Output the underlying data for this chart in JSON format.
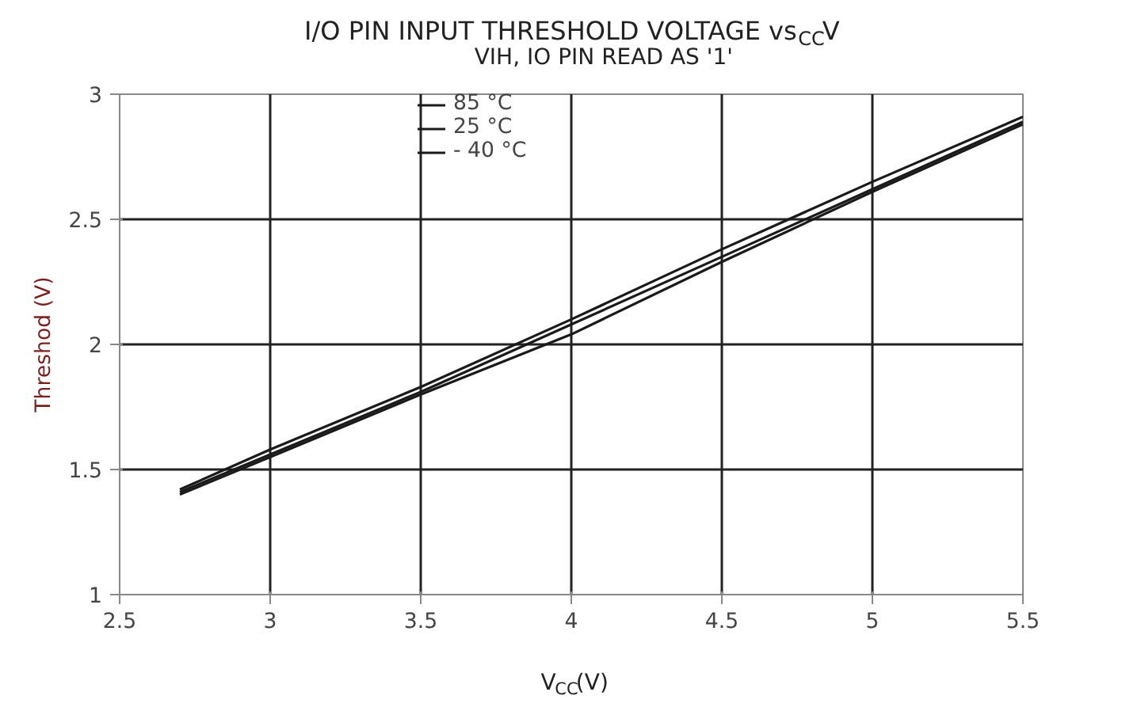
{
  "chart_data": {
    "type": "line",
    "title": "I/O PIN INPUT THRESHOLD VOLTAGE vs$_{CC}$V",
    "subtitle": "VIH, IO PIN READ AS '1'",
    "xlabel": "V$_{CC}$(V)",
    "ylabel": "Threshod (V)",
    "x": [
      2.7,
      3,
      3.5,
      4,
      4.5,
      5,
      5.5
    ],
    "series": [
      {
        "name": "85 °C",
        "color": "#1a1a1a",
        "values": [
          1.42,
          1.58,
          1.83,
          2.1,
          2.38,
          2.65,
          2.91
        ]
      },
      {
        "name": "25 °C",
        "color": "#1a1a1a",
        "values": [
          1.41,
          1.56,
          1.81,
          2.08,
          2.35,
          2.62,
          2.89
        ]
      },
      {
        "name": "- 40 °C",
        "color": "#1a1a1a",
        "values": [
          1.4,
          1.55,
          1.8,
          2.04,
          2.33,
          2.61,
          2.88
        ]
      }
    ],
    "xlim": [
      2.5,
      5.5
    ],
    "xticks": [
      2.5,
      3,
      3.5,
      4,
      4.5,
      5,
      5.5
    ],
    "ylim": [
      1,
      3
    ],
    "yticks": [
      1,
      1.5,
      2,
      2.5,
      3
    ],
    "grid": true,
    "legend": "top",
    "marker": "none",
    "line_style": "solid"
  }
}
